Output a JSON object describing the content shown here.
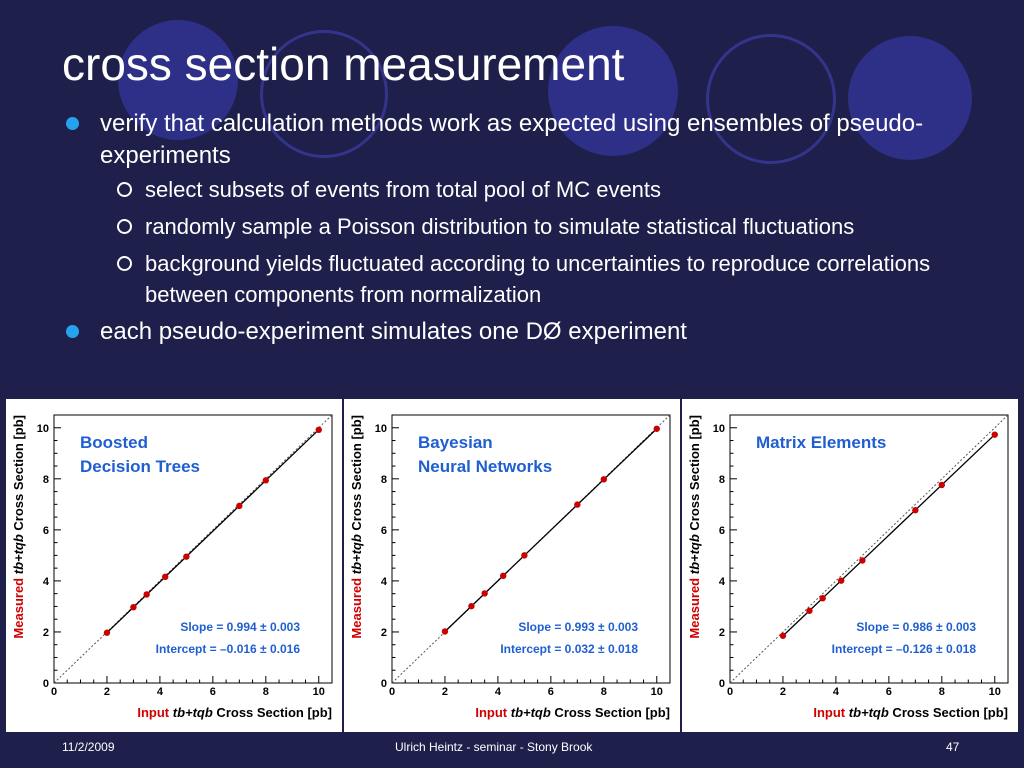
{
  "slide": {
    "title": "cross section measurement",
    "bullets": [
      {
        "text": "verify that calculation methods work as expected using ensembles of pseudo-experiments",
        "sub": [
          "select subsets of events from total pool of MC events",
          "randomly sample a Poisson distribution to simulate statistical fluctuations",
          "background yields fluctuated according to uncertainties to reproduce correlations between components from normalization"
        ]
      },
      {
        "text": "each pseudo-experiment simulates one DØ experiment",
        "sub": []
      }
    ],
    "footer": {
      "date": "11/2/2009",
      "center": "Ulrich Heintz - seminar - Stony Brook",
      "page": "47"
    },
    "colors": {
      "background": "#1e1f4b",
      "bullet": "#27a3ee",
      "accent_circle": "#2e2f86",
      "point": "#cc0000",
      "annotation": "#1f5fd1"
    }
  },
  "chart_data": [
    {
      "type": "scatter",
      "title_lines": [
        "Boosted",
        "Decision Trees"
      ],
      "x": [
        2,
        3,
        3.5,
        4.2,
        5,
        7,
        8,
        10
      ],
      "y": [
        1.97,
        2.97,
        3.47,
        4.16,
        4.95,
        6.94,
        7.94,
        9.92
      ],
      "xlim": [
        0,
        10.5
      ],
      "ylim": [
        0,
        10.5
      ],
      "xticks": [
        0,
        2,
        4,
        6,
        8,
        10
      ],
      "yticks": [
        0,
        2,
        4,
        6,
        8,
        10
      ],
      "xlabel_parts": [
        "Input ",
        "tb+tqb",
        " Cross Section [pb]"
      ],
      "ylabel_parts": [
        "Measured ",
        "tb+tqb",
        " Cross Section [pb]"
      ],
      "fit": {
        "slope": 0.994,
        "intercept": -0.016
      },
      "reference_line": "y=x",
      "slope_text": "Slope = 0.994 ± 0.003",
      "intercept_text": "Intercept = –0.016 ± 0.016"
    },
    {
      "type": "scatter",
      "title_lines": [
        "Bayesian",
        "Neural Networks"
      ],
      "x": [
        2,
        3,
        3.5,
        4.2,
        5,
        7,
        8,
        10
      ],
      "y": [
        2.02,
        3.01,
        3.51,
        4.2,
        5.0,
        6.99,
        7.98,
        9.96
      ],
      "xlim": [
        0,
        10.5
      ],
      "ylim": [
        0,
        10.5
      ],
      "xticks": [
        0,
        2,
        4,
        6,
        8,
        10
      ],
      "yticks": [
        0,
        2,
        4,
        6,
        8,
        10
      ],
      "xlabel_parts": [
        "Input ",
        "tb+tqb",
        " Cross Section [pb]"
      ],
      "ylabel_parts": [
        "Measured ",
        "tb+tqb",
        " Cross Section [pb]"
      ],
      "fit": {
        "slope": 0.993,
        "intercept": 0.032
      },
      "reference_line": "y=x",
      "slope_text": "Slope = 0.993 ± 0.003",
      "intercept_text": "Intercept = 0.032 ± 0.018"
    },
    {
      "type": "scatter",
      "title_lines": [
        "Matrix Elements"
      ],
      "x": [
        2,
        3,
        3.5,
        4.2,
        5,
        7,
        8,
        10
      ],
      "y": [
        1.85,
        2.83,
        3.32,
        4.01,
        4.8,
        6.77,
        7.76,
        9.73
      ],
      "xlim": [
        0,
        10.5
      ],
      "ylim": [
        0,
        10.5
      ],
      "xticks": [
        0,
        2,
        4,
        6,
        8,
        10
      ],
      "yticks": [
        0,
        2,
        4,
        6,
        8,
        10
      ],
      "xlabel_parts": [
        "Input ",
        "tb+tqb",
        " Cross Section [pb]"
      ],
      "ylabel_parts": [
        "Measured ",
        "tb+tqb",
        " Cross Section [pb]"
      ],
      "fit": {
        "slope": 0.986,
        "intercept": -0.126
      },
      "reference_line": "y=x",
      "slope_text": "Slope = 0.986 ± 0.003",
      "intercept_text": "Intercept = –0.126 ± 0.018"
    }
  ]
}
